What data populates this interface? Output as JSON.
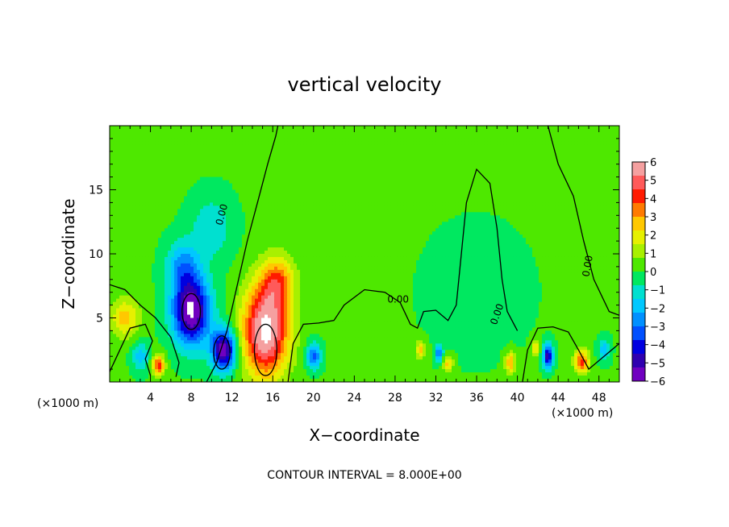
{
  "chart_data": {
    "type": "heatmap",
    "title": "vertical velocity",
    "xlabel": "X−coordinate",
    "ylabel": "Z−coordinate",
    "x_unit_left": "(×1000 m)",
    "x_unit_right": "(×1000 m)",
    "footer": "CONTOUR INTERVAL = 8.000E+00",
    "xlim": [
      0,
      50
    ],
    "ylim": [
      0,
      20
    ],
    "x_ticks": [
      4,
      8,
      12,
      16,
      20,
      24,
      28,
      32,
      36,
      40,
      44,
      48
    ],
    "x_tick_labels": [
      "4",
      "8",
      "12",
      "16",
      "20",
      "24",
      "28",
      "32",
      "36",
      "40",
      "44",
      "48"
    ],
    "y_ticks": [
      5,
      10,
      15
    ],
    "y_tick_labels": [
      "5",
      "10",
      "15"
    ],
    "colorbar": {
      "labels": [
        "6",
        "5",
        "4",
        "3",
        "2",
        "1",
        "0",
        "−1",
        "−2",
        "−3",
        "−4",
        "−5",
        "−6"
      ],
      "colors": [
        "#f5a0a0",
        "#ff5a5a",
        "#ff1a00",
        "#ff7a00",
        "#ffc800",
        "#e6f000",
        "#a8f000",
        "#4ee800",
        "#00e860",
        "#00e0d0",
        "#00c8ff",
        "#0090ff",
        "#0050ff",
        "#0000e0",
        "#3000b0",
        "#7000c0"
      ]
    },
    "contour_labels": [
      "0.00",
      "0.00",
      "0.00",
      "0.00"
    ],
    "features": [
      {
        "kind": "updraft",
        "x": 15.3,
        "z": 4.0,
        "amp": 6.5,
        "sx": 2.2,
        "sz": 3.5
      },
      {
        "kind": "updraft",
        "x": 16.5,
        "z": 7.8,
        "amp": 3.0,
        "sx": 1.6,
        "sz": 2.0
      },
      {
        "kind": "downdraft",
        "x": 8.0,
        "z": 5.5,
        "amp": -6.5,
        "sx": 1.8,
        "sz": 2.6
      },
      {
        "kind": "downdraft",
        "x": 11.2,
        "z": 2.5,
        "amp": -6.0,
        "sx": 1.2,
        "sz": 1.6
      },
      {
        "kind": "downdraft",
        "x": 7.2,
        "z": 9.0,
        "amp": -2.5,
        "sx": 1.6,
        "sz": 2.0
      },
      {
        "kind": "downdraft",
        "x": 10.0,
        "z": 12.0,
        "amp": -1.5,
        "sx": 2.0,
        "sz": 2.5
      },
      {
        "kind": "updraft",
        "x": 1.5,
        "z": 5.0,
        "amp": 2.5,
        "sx": 1.4,
        "sz": 1.5
      },
      {
        "kind": "updraft",
        "x": 4.8,
        "z": 1.3,
        "amp": 4.0,
        "sx": 0.6,
        "sz": 0.8
      },
      {
        "kind": "downdraft",
        "x": 3.0,
        "z": 2.0,
        "amp": -2.0,
        "sx": 0.8,
        "sz": 1.2
      },
      {
        "kind": "downdraft",
        "x": 20.0,
        "z": 2.0,
        "amp": -3.5,
        "sx": 0.7,
        "sz": 1.0
      },
      {
        "kind": "updraft",
        "x": 30.5,
        "z": 2.5,
        "amp": 2.5,
        "sx": 0.5,
        "sz": 0.7
      },
      {
        "kind": "downdraft",
        "x": 32.3,
        "z": 2.3,
        "amp": -3.0,
        "sx": 0.4,
        "sz": 0.7
      },
      {
        "kind": "updraft",
        "x": 33.2,
        "z": 1.4,
        "amp": 2.5,
        "sx": 0.5,
        "sz": 0.6
      },
      {
        "kind": "updraft",
        "x": 39.3,
        "z": 1.5,
        "amp": 3.0,
        "sx": 0.5,
        "sz": 0.8
      },
      {
        "kind": "updraft",
        "x": 41.8,
        "z": 2.6,
        "amp": 2.5,
        "sx": 0.4,
        "sz": 0.6
      },
      {
        "kind": "downdraft",
        "x": 43.0,
        "z": 2.0,
        "amp": -5.0,
        "sx": 0.5,
        "sz": 0.9
      },
      {
        "kind": "updraft",
        "x": 46.3,
        "z": 1.6,
        "amp": 4.0,
        "sx": 0.7,
        "sz": 0.9
      },
      {
        "kind": "downdraft",
        "x": 48.5,
        "z": 2.5,
        "amp": -2.0,
        "sx": 0.6,
        "sz": 0.9
      },
      {
        "kind": "updraft",
        "x": 36.0,
        "z": 7.0,
        "amp": -0.3,
        "sx": 6.0,
        "sz": 6.0
      }
    ]
  }
}
